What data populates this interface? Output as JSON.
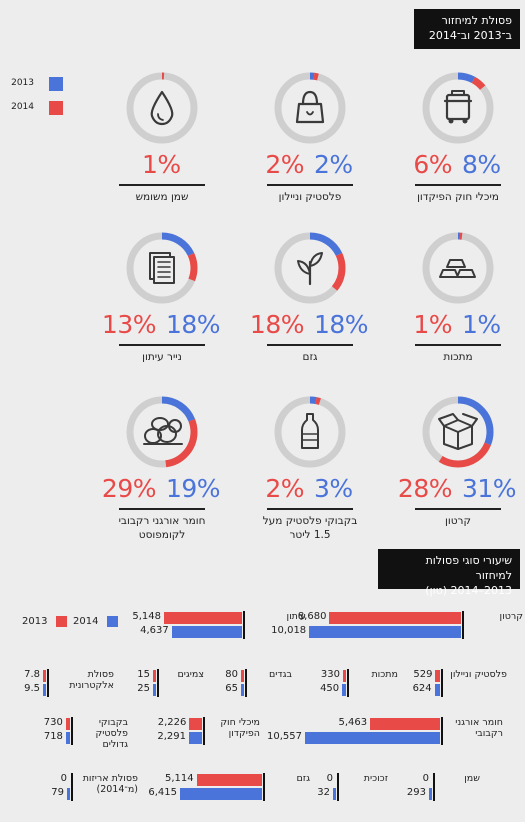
{
  "header": {
    "title_line1": "פסולת למיחזור",
    "title_line2": "ב־2013 וב־2014"
  },
  "legend_top": {
    "y2013": "2013",
    "y2014": "2014"
  },
  "colors": {
    "y2013": "#4a74d9",
    "y2014": "#e84a48",
    "track": "#cfcfcf",
    "icon": "#3a3a3a"
  },
  "chart_data": [
    {
      "type": "pie",
      "note_series": [
        "2013",
        "2014"
      ],
      "items": [
        {
          "label": "מיכלי חוק הפיקדון",
          "icon": "bin-icon",
          "v2013": 8,
          "v2014": 6,
          "t2013": "8%",
          "t2014": "6%"
        },
        {
          "label": "פלסטיק וניילון",
          "icon": "plastic-bag-icon",
          "v2013": 2,
          "v2014": 2,
          "t2013": "2%",
          "t2014": "2%"
        },
        {
          "label": "שמן משומש",
          "icon": "oil-drop-icon",
          "v2013": null,
          "v2014": 1,
          "t2013": "",
          "t2014": "1%"
        },
        {
          "label": "מתכות",
          "icon": "metal-bars-icon",
          "v2013": 1,
          "v2014": 1,
          "t2013": "1%",
          "t2014": "1%"
        },
        {
          "label": "גזם",
          "icon": "plant-icon",
          "v2013": 18,
          "v2014": 18,
          "t2013": "18%",
          "t2014": "18%"
        },
        {
          "label": "נייר עיתון",
          "icon": "newspaper-icon",
          "v2013": 18,
          "v2014": 13,
          "t2013": "18%",
          "t2014": "13%"
        },
        {
          "label": "קרטון",
          "icon": "carton-box-icon",
          "v2013": 31,
          "v2014": 28,
          "t2013": "31%",
          "t2014": "28%"
        },
        {
          "label": "בקבוקי פלסטיק מעל 1.5 ליטר",
          "icon": "bottle-icon",
          "v2013": 3,
          "v2014": 2,
          "t2013": "3%",
          "t2014": "2%"
        },
        {
          "label": "חומר אורגני רקבובי לקומפוסט",
          "icon": "compost-icon",
          "v2013": 19,
          "v2014": 29,
          "t2013": "19%",
          "t2014": "29%"
        }
      ]
    },
    {
      "type": "bar",
      "title_line1": "שיעורי סוגי פסולות למיחזור",
      "title_line2": "2013–2014 (טון)",
      "legend": {
        "y2013": "2013",
        "y2014": "2014"
      },
      "series": [
        {
          "name": "2013",
          "color": "#e84a48"
        },
        {
          "name": "2014",
          "color": "#4a74d9"
        }
      ],
      "items": [
        {
          "label": "קרטון",
          "v2013": 8680,
          "v2014": 10018,
          "t2013": "8,680",
          "t2014": "10,018"
        },
        {
          "label": "עיתון",
          "v2013": 5148,
          "v2014": 4637,
          "t2013": "5,148",
          "t2014": "4,637"
        },
        {
          "label": "פלסטיק וניילון",
          "v2013": 529,
          "v2014": 624,
          "t2013": "529",
          "t2014": "624"
        },
        {
          "label": "מתכות",
          "v2013": 330,
          "v2014": 450,
          "t2013": "330",
          "t2014": "450"
        },
        {
          "label": "בגדים",
          "v2013": 80,
          "v2014": 65,
          "t2013": "80",
          "t2014": "65"
        },
        {
          "label": "צמיגים",
          "v2013": 15,
          "v2014": 25,
          "t2013": "15",
          "t2014": "25"
        },
        {
          "label": "פסולת אלקטרונית",
          "v2013": 7.8,
          "v2014": 9.5,
          "t2013": "7.8",
          "t2014": "9.5"
        },
        {
          "label": "חומר אורגני רקבובי",
          "v2013": 5463,
          "v2014": 10557,
          "t2013": "5,463",
          "t2014": "10,557"
        },
        {
          "label": "מיכלי חוק הפיקדון",
          "v2013": 2226,
          "v2014": 2291,
          "t2013": "2,226",
          "t2014": "2,291"
        },
        {
          "label": "בקבוקי פלסטיק גדולים",
          "v2013": 730,
          "v2014": 718,
          "t2013": "730",
          "t2014": "718"
        },
        {
          "label": "שמן",
          "v2013": 0,
          "v2014": 293,
          "t2013": "0",
          "t2014": "293"
        },
        {
          "label": "זכוכית",
          "v2013": 0,
          "v2014": 32,
          "t2013": "0",
          "t2014": "32"
        },
        {
          "label": "גזם",
          "v2013": 5114,
          "v2014": 6415,
          "t2013": "5,114",
          "t2014": "6,415"
        },
        {
          "label": "פסולת אריזות (מ־2014)",
          "v2013": 0,
          "v2014": 79,
          "t2013": "0",
          "t2014": "79"
        }
      ]
    }
  ]
}
